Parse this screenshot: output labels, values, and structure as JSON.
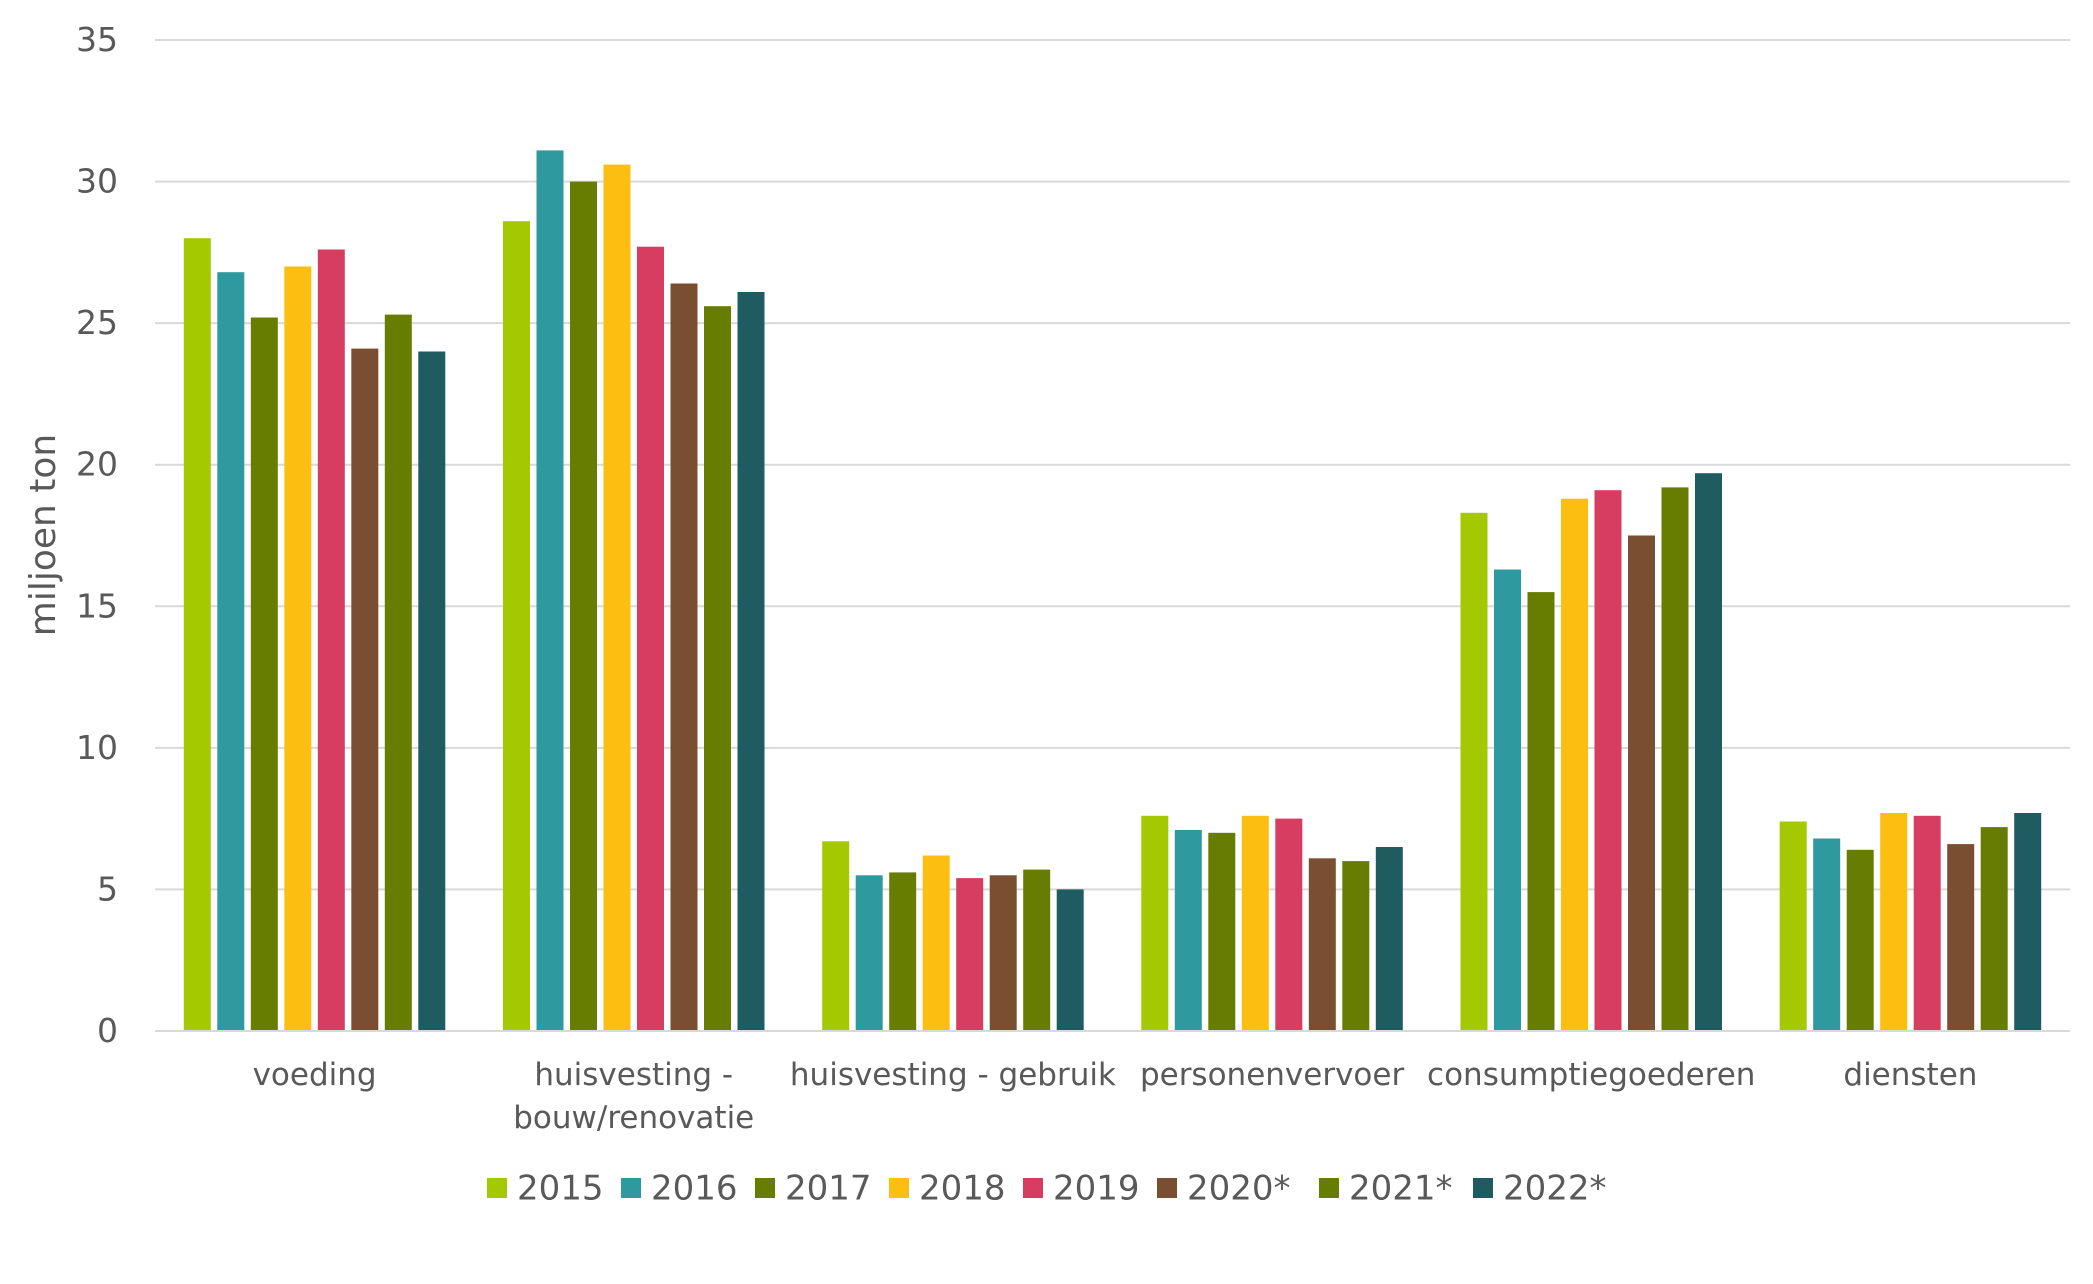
{
  "chart_data": {
    "type": "bar",
    "ylabel": "miljoen ton",
    "ylim": [
      0,
      35
    ],
    "yticks": [
      0,
      5,
      10,
      15,
      20,
      25,
      30,
      35
    ],
    "grid": true,
    "legend_position": "bottom",
    "categories": [
      "voeding",
      "huisvesting - bouw/renovatie",
      "huisvesting - gebruik",
      "personenvervoer",
      "consumptiegoederen",
      "diensten"
    ],
    "series": [
      {
        "name": "2015",
        "color": "#A5C900",
        "values": [
          28.0,
          28.6,
          6.7,
          7.6,
          18.3,
          7.4
        ]
      },
      {
        "name": "2016",
        "color": "#2E9AA0",
        "values": [
          26.8,
          31.1,
          5.5,
          7.1,
          16.3,
          6.8
        ]
      },
      {
        "name": "2017",
        "color": "#677D01",
        "values": [
          25.2,
          30.0,
          5.6,
          7.0,
          15.5,
          6.4
        ]
      },
      {
        "name": "2018",
        "color": "#FDBE12",
        "values": [
          27.0,
          30.6,
          6.2,
          7.6,
          18.8,
          7.7
        ]
      },
      {
        "name": "2019",
        "color": "#D63D61",
        "values": [
          27.6,
          27.7,
          5.4,
          7.5,
          19.1,
          7.6
        ]
      },
      {
        "name": "2020*",
        "color": "#7A4F31",
        "values": [
          24.1,
          26.4,
          5.5,
          6.1,
          17.5,
          6.6
        ]
      },
      {
        "name": "2021*",
        "color": "#677D01",
        "values": [
          25.3,
          25.6,
          5.7,
          6.0,
          19.2,
          7.2
        ]
      },
      {
        "name": "2022*",
        "color": "#1F5C62",
        "values": [
          24.0,
          26.1,
          5.0,
          6.5,
          19.7,
          7.7
        ]
      }
    ]
  }
}
